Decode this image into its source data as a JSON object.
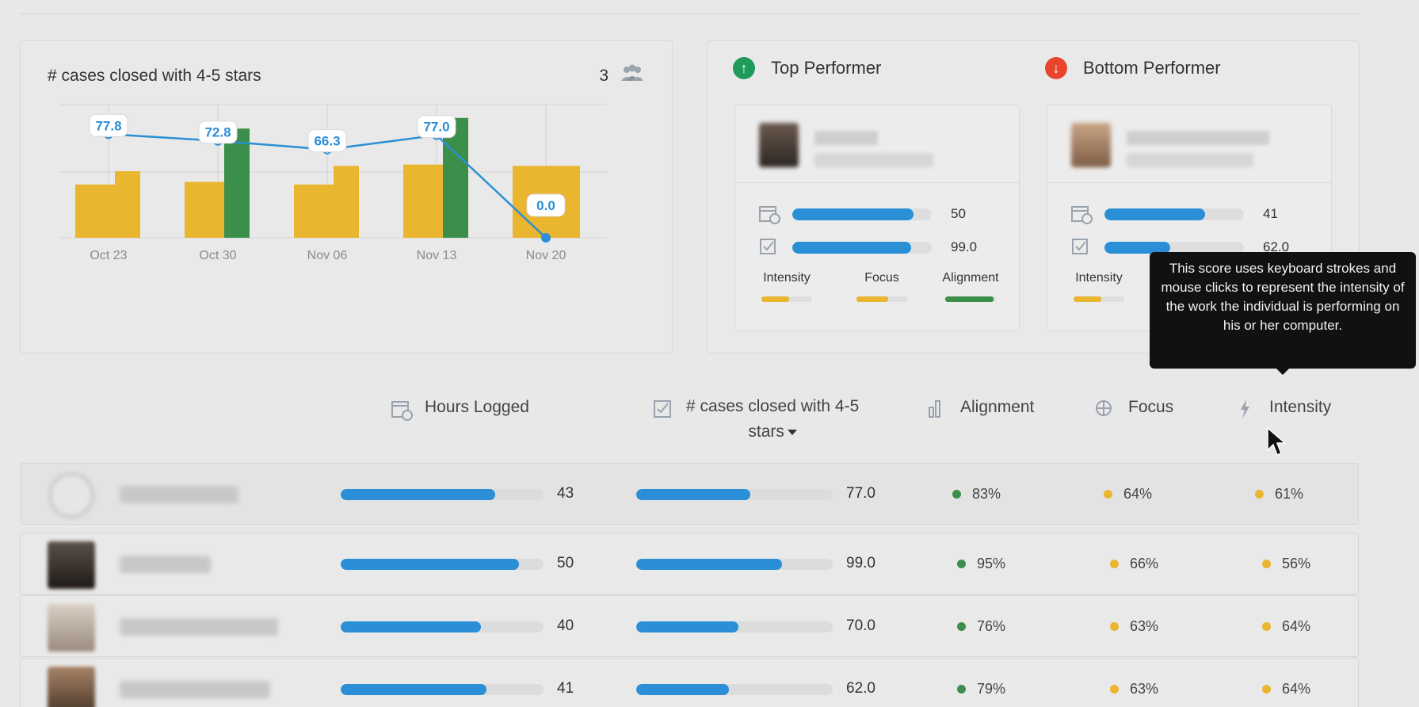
{
  "colors": {
    "blue": "#2a8fd6",
    "yellow": "#eab52f",
    "green": "#3c8f4a",
    "up": "#1e9a5a",
    "down": "#e8452c"
  },
  "chart_card": {
    "title": "# cases closed with 4-5 stars",
    "count": "3",
    "count_icon": "people-icon"
  },
  "chart_data": {
    "type": "bar",
    "categories": [
      "Oct 23",
      "Oct 30",
      "Nov 06",
      "Nov 13",
      "Nov 20"
    ],
    "series": [
      {
        "values": [
          40,
          42,
          40,
          55,
          0
        ],
        "color": "#eab52f"
      },
      {
        "values": [
          50,
          70,
          54,
          78,
          54
        ],
        "color": "#eab52f"
      },
      {
        "values": [
          null,
          82,
          null,
          90,
          null
        ],
        "color": "#3c8f4a"
      }
    ],
    "line": {
      "values": [
        77.8,
        72.8,
        66.3,
        77.0,
        0.0
      ],
      "labels": [
        "77.8",
        "72.8",
        "66.3",
        "77.0",
        "0.0"
      ],
      "color": "#2a8fd6"
    },
    "grid": true,
    "ylim": [
      0,
      100
    ]
  },
  "top_performer": {
    "label": "Top Performer",
    "icon": "arrow-up-icon",
    "hours": 0.87,
    "hours_value": "50",
    "cases": 0.85,
    "cases_value": "99.0",
    "minis": [
      {
        "label": "Intensity",
        "fill": 0.55,
        "color": "#eab52f"
      },
      {
        "label": "Focus",
        "fill": 0.62,
        "color": "#eab52f"
      },
      {
        "label": "Alignment",
        "fill": 0.95,
        "color": "#3c8f4a"
      }
    ]
  },
  "bottom_performer": {
    "label": "Bottom Performer",
    "icon": "arrow-down-icon",
    "hours": 0.72,
    "hours_value": "41",
    "cases": 0.47,
    "cases_value": "62.0",
    "minis": [
      {
        "label": "Intensity",
        "fill": 0.55,
        "color": "#eab52f"
      }
    ]
  },
  "tooltip": {
    "text": "This score uses keyboard strokes and mouse clicks to represent the intensity of the work the individual is performing on his or her computer."
  },
  "table": {
    "headers": {
      "hours": "Hours Logged",
      "cases": "# cases closed with 4-5",
      "cases_line2": "stars",
      "alignment": "Alignment",
      "focus": "Focus",
      "intensity": "Intensity"
    },
    "rows": [
      {
        "hours": 0.76,
        "hours_value": "43",
        "cases": 0.58,
        "cases_value": "77.0",
        "alignment": "83%",
        "focus": "64%",
        "intensity": "61%",
        "align_color": "#3c8f4a"
      },
      {
        "hours": 0.88,
        "hours_value": "50",
        "cases": 0.74,
        "cases_value": "99.0",
        "alignment": "95%",
        "focus": "66%",
        "intensity": "56%",
        "align_color": "#3c8f4a"
      },
      {
        "hours": 0.69,
        "hours_value": "40",
        "cases": 0.52,
        "cases_value": "70.0",
        "alignment": "76%",
        "focus": "63%",
        "intensity": "64%",
        "align_color": "#3c8f4a"
      },
      {
        "hours": 0.72,
        "hours_value": "41",
        "cases": 0.47,
        "cases_value": "62.0",
        "alignment": "79%",
        "focus": "63%",
        "intensity": "64%",
        "align_color": "#3c8f4a"
      }
    ]
  }
}
